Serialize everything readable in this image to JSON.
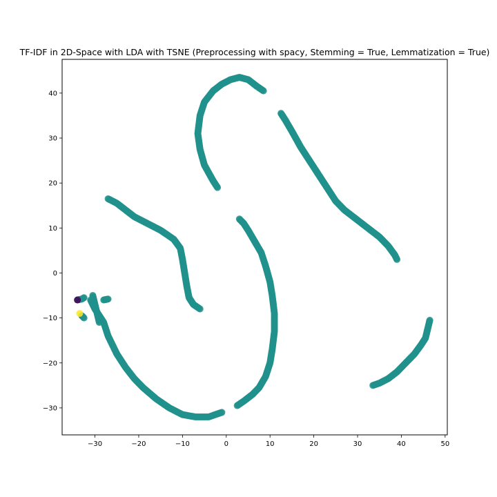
{
  "chart_data": {
    "type": "scatter",
    "title": "TF-IDF in 2D-Space with LDA with TSNE (Preprocessing with spacy, Stemming = True, Lemmatization = True)",
    "xlabel": "",
    "ylabel": "",
    "xlim": [
      -37.5,
      50.5
    ],
    "ylim": [
      -36,
      47.5
    ],
    "xticks": [
      -30,
      -20,
      -10,
      0,
      10,
      20,
      30,
      40,
      50
    ],
    "yticks": [
      -30,
      -20,
      -10,
      0,
      10,
      20,
      30,
      40
    ],
    "xtick_labels": [
      "−30",
      "−20",
      "−10",
      "0",
      "10",
      "20",
      "30",
      "40",
      "50"
    ],
    "ytick_labels": [
      "−30",
      "−20",
      "−10",
      "0",
      "10",
      "20",
      "30",
      "40"
    ],
    "grid": false,
    "colors": {
      "main": "#21918c",
      "purple": "#440154",
      "yellow": "#fde725",
      "point_alpha": 0.85
    },
    "curves": [
      {
        "name": "top-arc",
        "color": "main",
        "points": [
          [
            -2,
            19
          ],
          [
            -3,
            20.5
          ],
          [
            -5,
            24
          ],
          [
            -6,
            27.5
          ],
          [
            -6.5,
            31
          ],
          [
            -6,
            35
          ],
          [
            -5,
            38
          ],
          [
            -3,
            40.5
          ],
          [
            -1,
            42
          ],
          [
            1,
            43
          ],
          [
            3,
            43.5
          ],
          [
            5,
            43
          ],
          [
            7,
            41.5
          ],
          [
            8.5,
            40.5
          ]
        ]
      },
      {
        "name": "right-long-arc",
        "color": "main",
        "points": [
          [
            12.5,
            35.5
          ],
          [
            13.5,
            34
          ],
          [
            15,
            31.5
          ],
          [
            17,
            28
          ],
          [
            19,
            25
          ],
          [
            21,
            22
          ],
          [
            23,
            19
          ],
          [
            25,
            16
          ],
          [
            27,
            14
          ],
          [
            29,
            12.5
          ],
          [
            31,
            11
          ],
          [
            33,
            9.5
          ],
          [
            35,
            8
          ],
          [
            37,
            6
          ],
          [
            38.5,
            4
          ],
          [
            39,
            3
          ]
        ]
      },
      {
        "name": "left-middle-arc",
        "color": "main",
        "points": [
          [
            -27,
            16.5
          ],
          [
            -25,
            15.5
          ],
          [
            -23,
            14
          ],
          [
            -21,
            12.5
          ],
          [
            -18,
            11
          ],
          [
            -15,
            9.5
          ],
          [
            -12,
            7.5
          ],
          [
            -10.5,
            5.5
          ],
          [
            -10,
            3
          ],
          [
            -9.5,
            0
          ],
          [
            -9,
            -3
          ],
          [
            -8.5,
            -5.5
          ],
          [
            -7.5,
            -7
          ],
          [
            -6,
            -8
          ]
        ]
      },
      {
        "name": "big-u-curve",
        "color": "main",
        "points": [
          [
            -31,
            -6
          ],
          [
            -30,
            -8
          ],
          [
            -28,
            -11
          ],
          [
            -27,
            -14
          ],
          [
            -25,
            -18
          ],
          [
            -23,
            -21
          ],
          [
            -21,
            -23.5
          ],
          [
            -19,
            -25.5
          ],
          [
            -16,
            -28
          ],
          [
            -13,
            -30
          ],
          [
            -10,
            -31.5
          ],
          [
            -7,
            -32
          ],
          [
            -4,
            -32
          ],
          [
            -1,
            -31
          ]
        ]
      },
      {
        "name": "center-s-curve",
        "color": "main",
        "points": [
          [
            3,
            12
          ],
          [
            4,
            11
          ],
          [
            5,
            9.5
          ],
          [
            6.5,
            7
          ],
          [
            8,
            4.5
          ],
          [
            9,
            1.5
          ],
          [
            10,
            -2
          ],
          [
            10.5,
            -5
          ],
          [
            11,
            -9
          ],
          [
            11,
            -13
          ],
          [
            10.5,
            -17
          ],
          [
            10,
            -20
          ],
          [
            9,
            -23
          ],
          [
            7.5,
            -25.5
          ],
          [
            6,
            -27
          ],
          [
            4,
            -28.5
          ],
          [
            2.5,
            -29.5
          ]
        ]
      },
      {
        "name": "lower-right-arc",
        "color": "main",
        "points": [
          [
            33.5,
            -25
          ],
          [
            35,
            -24.5
          ],
          [
            37,
            -23.5
          ],
          [
            39,
            -22
          ],
          [
            41,
            -20
          ],
          [
            43,
            -18
          ],
          [
            44.5,
            -16
          ],
          [
            45.5,
            -14.5
          ],
          [
            46,
            -12.5
          ],
          [
            46.5,
            -10.5
          ]
        ]
      },
      {
        "name": "small-cluster-a",
        "color": "main",
        "points": [
          [
            -34,
            -6
          ],
          [
            -33,
            -5.8
          ],
          [
            -32.5,
            -5.5
          ]
        ]
      },
      {
        "name": "small-cluster-b",
        "color": "main",
        "points": [
          [
            -33,
            -9.5
          ],
          [
            -32.5,
            -10
          ]
        ]
      },
      {
        "name": "small-cluster-c",
        "color": "main",
        "points": [
          [
            -28,
            -6
          ],
          [
            -27,
            -5.8
          ]
        ]
      },
      {
        "name": "small-cluster-d",
        "color": "main",
        "points": [
          [
            -30.5,
            -5
          ],
          [
            -29,
            -11
          ]
        ]
      }
    ],
    "special_points": [
      {
        "x": -34,
        "y": -6,
        "color": "purple"
      },
      {
        "x": -33.5,
        "y": -9,
        "color": "yellow"
      }
    ]
  }
}
